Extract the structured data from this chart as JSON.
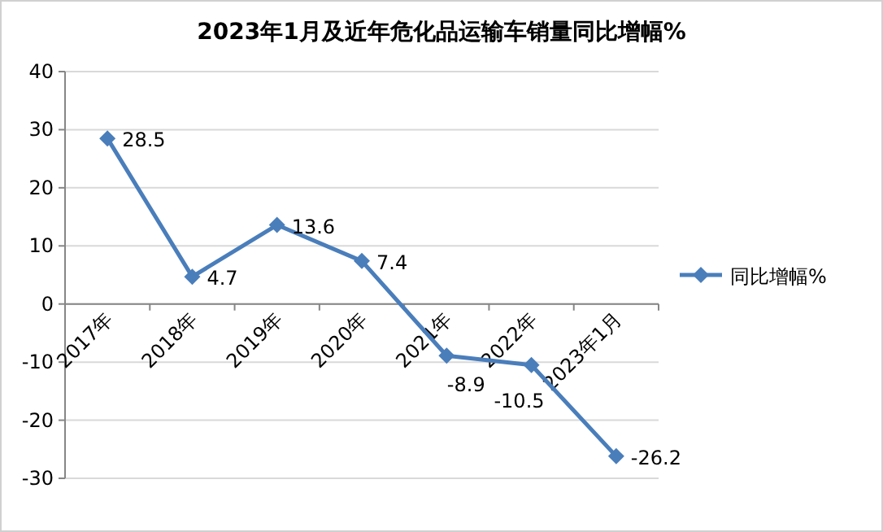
{
  "chart_data": {
    "type": "line",
    "title": "2023年1月及近年危化品运输车销量同比增幅%",
    "categories": [
      "2017年",
      "2018年",
      "2019年",
      "2020年",
      "2021年",
      "2022年",
      "2023年1月"
    ],
    "series": [
      {
        "name": "同比增幅%",
        "color": "#4a7ebb",
        "values": [
          28.5,
          4.7,
          13.6,
          7.4,
          -8.9,
          -10.5,
          -26.2
        ]
      }
    ],
    "ylim": [
      -30,
      40
    ],
    "yticks": [
      -30,
      -20,
      -10,
      0,
      10,
      20,
      30,
      40
    ],
    "grid": "y",
    "legend": "right",
    "marker": "diamond",
    "data_labels": true
  }
}
